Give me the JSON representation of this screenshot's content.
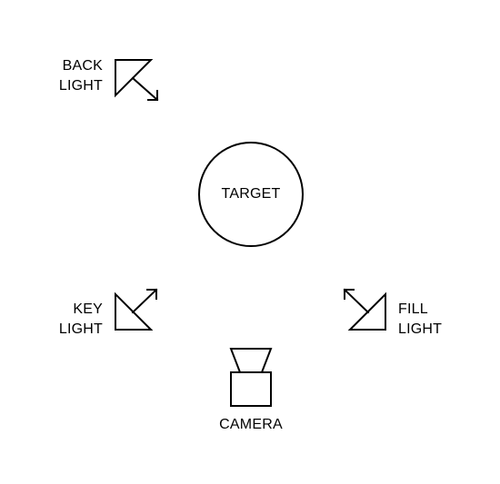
{
  "colors": {
    "stroke": "#000000",
    "background": "#ffffff"
  },
  "target": {
    "label": "TARGET"
  },
  "back_light": {
    "line1": "BACK",
    "line2": "LIGHT",
    "icon": "light-arrow-icon"
  },
  "key_light": {
    "line1": "KEY",
    "line2": "LIGHT",
    "icon": "light-arrow-icon"
  },
  "fill_light": {
    "line1": "FILL",
    "line2": "LIGHT",
    "icon": "light-arrow-icon"
  },
  "camera": {
    "label": "CAMERA",
    "icon": "camera-icon"
  }
}
